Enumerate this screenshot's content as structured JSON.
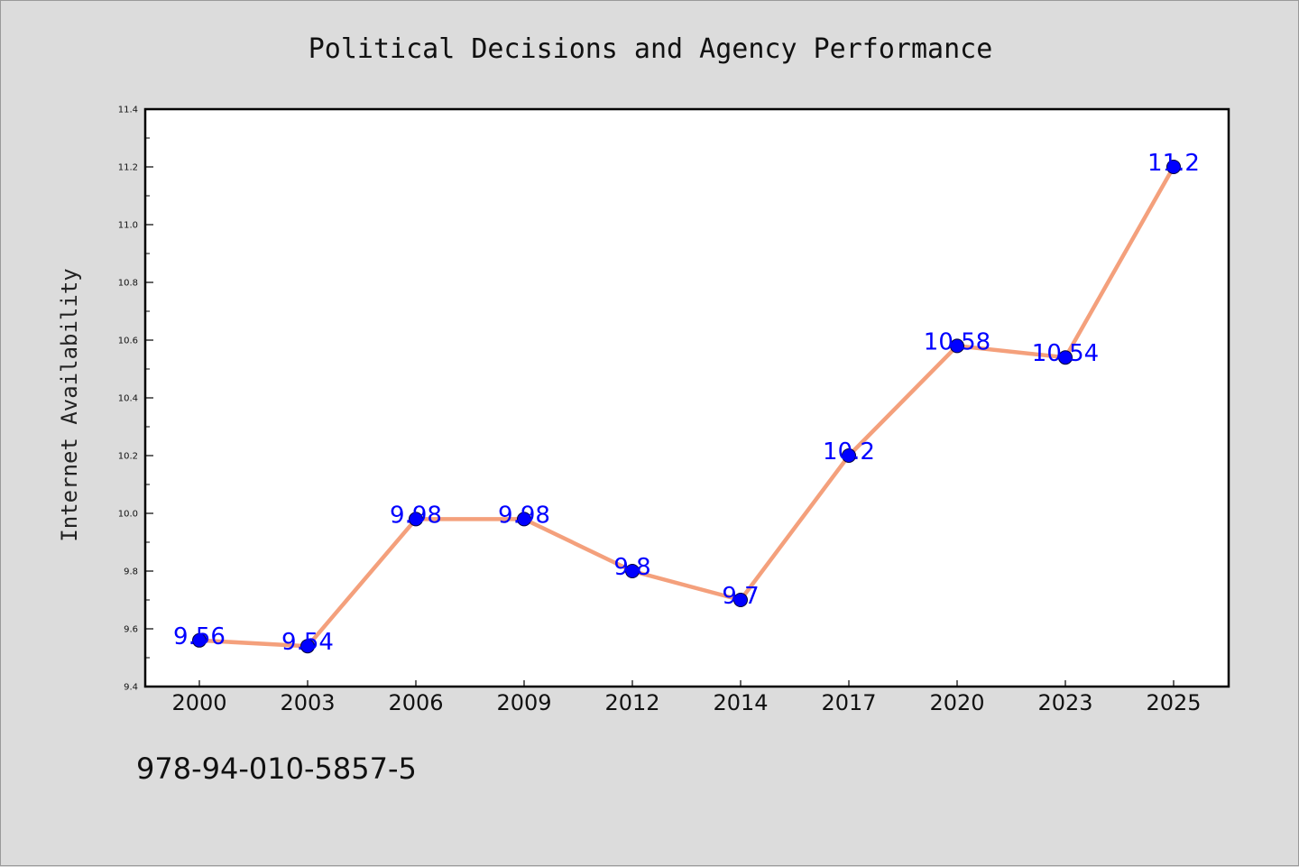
{
  "chart_data": {
    "type": "line",
    "title": "Political Decisions and Agency Performance",
    "xlabel": "",
    "ylabel": "Internet Availability",
    "categories": [
      "2000",
      "2003",
      "2006",
      "2009",
      "2012",
      "2014",
      "2017",
      "2020",
      "2023",
      "2025"
    ],
    "series": [
      {
        "values": [
          9.56,
          9.54,
          9.98,
          9.98,
          9.8,
          9.7,
          10.2,
          10.58,
          10.54,
          11.2
        ]
      }
    ],
    "data_labels": [
      "9.56",
      "9.54",
      "9.98",
      "9.98",
      "9.8",
      "9.7",
      "10.2",
      "10.58",
      "10.54",
      "11.2"
    ],
    "ylim": [
      9.4,
      11.4
    ],
    "yticks": [
      "9.4",
      "9.6",
      "9.8",
      "10.0",
      "10.2",
      "10.4",
      "10.6",
      "10.8",
      "11.0",
      "11.2",
      "11.4"
    ],
    "grid": false,
    "legend": "none",
    "colors": {
      "line": "#f4a07c",
      "marker": "#0000ff",
      "label": "#0000ff",
      "background": "#dcdcdc",
      "plot_background": "#ffffff"
    }
  },
  "footer": {
    "code": "978-94-010-5857-5"
  }
}
